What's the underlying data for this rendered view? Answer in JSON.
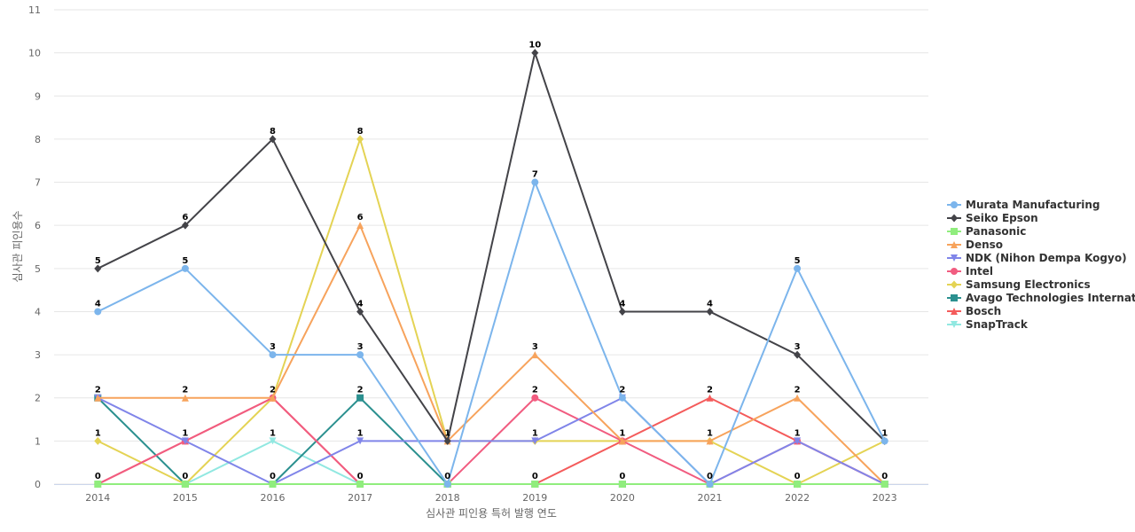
{
  "chart_data": {
    "type": "line",
    "title": "",
    "xlabel": "심사관 피인용 특허 발행 연도",
    "ylabel": "심사관 피인용수",
    "ylim": [
      0,
      11
    ],
    "yticks": [
      0,
      1,
      2,
      3,
      4,
      5,
      6,
      7,
      8,
      9,
      10,
      11
    ],
    "grid": true,
    "legend_position": "right",
    "categories": [
      "2014",
      "2015",
      "2016",
      "2017",
      "2018",
      "2019",
      "2020",
      "2021",
      "2022",
      "2023"
    ],
    "series": [
      {
        "name": "Murata Manufacturing",
        "color": "#7cb5ec",
        "marker": "circle",
        "values": [
          4,
          5,
          3,
          3,
          0,
          7,
          2,
          0,
          5,
          1
        ],
        "labeled": true
      },
      {
        "name": "Seiko Epson",
        "color": "#434348",
        "marker": "diamond",
        "values": [
          5,
          6,
          8,
          4,
          1,
          10,
          4,
          4,
          3,
          1
        ],
        "labeled": true
      },
      {
        "name": "Panasonic",
        "color": "#90ed7d",
        "marker": "square",
        "values": [
          0,
          0,
          0,
          0,
          0,
          0,
          0,
          0,
          0,
          0
        ],
        "labeled": false
      },
      {
        "name": "Denso",
        "color": "#f7a35c",
        "marker": "triangle",
        "values": [
          2,
          2,
          2,
          6,
          1,
          3,
          1,
          1,
          2,
          0
        ],
        "labeled": true
      },
      {
        "name": "NDK (Nihon Dempa Kogyo)",
        "color": "#8085e9",
        "marker": "triangle-down",
        "values": [
          2,
          1,
          0,
          1,
          1,
          1,
          2,
          0,
          1,
          0
        ],
        "labeled": false
      },
      {
        "name": "Intel",
        "color": "#f15c80",
        "marker": "circle",
        "values": [
          0,
          1,
          2,
          0,
          0,
          2,
          1,
          0,
          1,
          0
        ],
        "labeled": false
      },
      {
        "name": "Samsung Electronics",
        "color": "#e4d354",
        "marker": "diamond",
        "values": [
          1,
          0,
          2,
          8,
          1,
          1,
          1,
          1,
          0,
          1
        ],
        "labeled": true
      },
      {
        "name": "Avago Technologies Internat...",
        "color": "#2b908f",
        "marker": "square",
        "values": [
          2,
          0,
          0,
          2,
          0,
          0,
          0,
          0,
          0,
          0
        ],
        "labeled": false
      },
      {
        "name": "Bosch",
        "color": "#f45b5b",
        "marker": "triangle",
        "values": [
          0,
          1,
          2,
          0,
          0,
          0,
          1,
          2,
          1,
          0
        ],
        "labeled": false
      },
      {
        "name": "SnapTrack",
        "color": "#91e8e1",
        "marker": "triangle-down",
        "values": [
          0,
          0,
          1,
          0,
          0,
          0,
          0,
          0,
          0,
          0
        ],
        "labeled": false
      }
    ],
    "data_labels": [
      {
        "category": "2014",
        "values": [
          "5",
          "4",
          "2",
          "1",
          "0"
        ]
      },
      {
        "category": "2015",
        "values": [
          "6",
          "5",
          "2",
          "1",
          "0"
        ]
      },
      {
        "category": "2016",
        "values": [
          "8",
          "3",
          "2",
          "1",
          "0"
        ]
      },
      {
        "category": "2017",
        "values": [
          "8",
          "6",
          "4",
          "3",
          "2",
          "1",
          "0"
        ]
      },
      {
        "category": "2018",
        "values": [
          "1",
          "0"
        ]
      },
      {
        "category": "2019",
        "values": [
          "10",
          "7",
          "3",
          "2",
          "1",
          "0"
        ]
      },
      {
        "category": "2020",
        "values": [
          "4",
          "2",
          "1",
          "0"
        ]
      },
      {
        "category": "2021",
        "values": [
          "4",
          "2",
          "1",
          "0"
        ]
      },
      {
        "category": "2022",
        "values": [
          "5",
          "3",
          "2",
          "1",
          "0"
        ]
      },
      {
        "category": "2023",
        "values": [
          "1",
          "0"
        ]
      }
    ]
  }
}
